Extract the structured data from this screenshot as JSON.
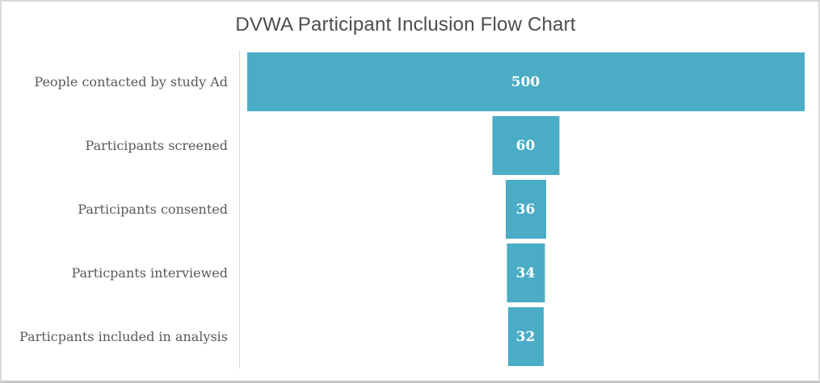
{
  "title": "DVWA Participant Inclusion Flow Chart",
  "colors": {
    "bar": "#4BACC6",
    "value_text": "#FFFFFF",
    "title_text": "#4D4D4D",
    "label_text": "#595959",
    "axis_line": "#D9D9D9",
    "frame_border": "#D9D9D9"
  },
  "chart_data": {
    "type": "bar",
    "variant": "funnel",
    "orientation": "horizontal-centered",
    "title": "DVWA Participant Inclusion Flow Chart",
    "categories": [
      "People contacted by study Ad",
      "Participants screened",
      "Participants consented",
      "Particpants interviewed",
      "Particpants included in analysis"
    ],
    "values": [
      500,
      60,
      36,
      34,
      32
    ],
    "xlabel": "",
    "ylabel": "",
    "value_axis_range": [
      0,
      500
    ],
    "grid": false,
    "legend": "none",
    "data_labels": "inside-center"
  }
}
